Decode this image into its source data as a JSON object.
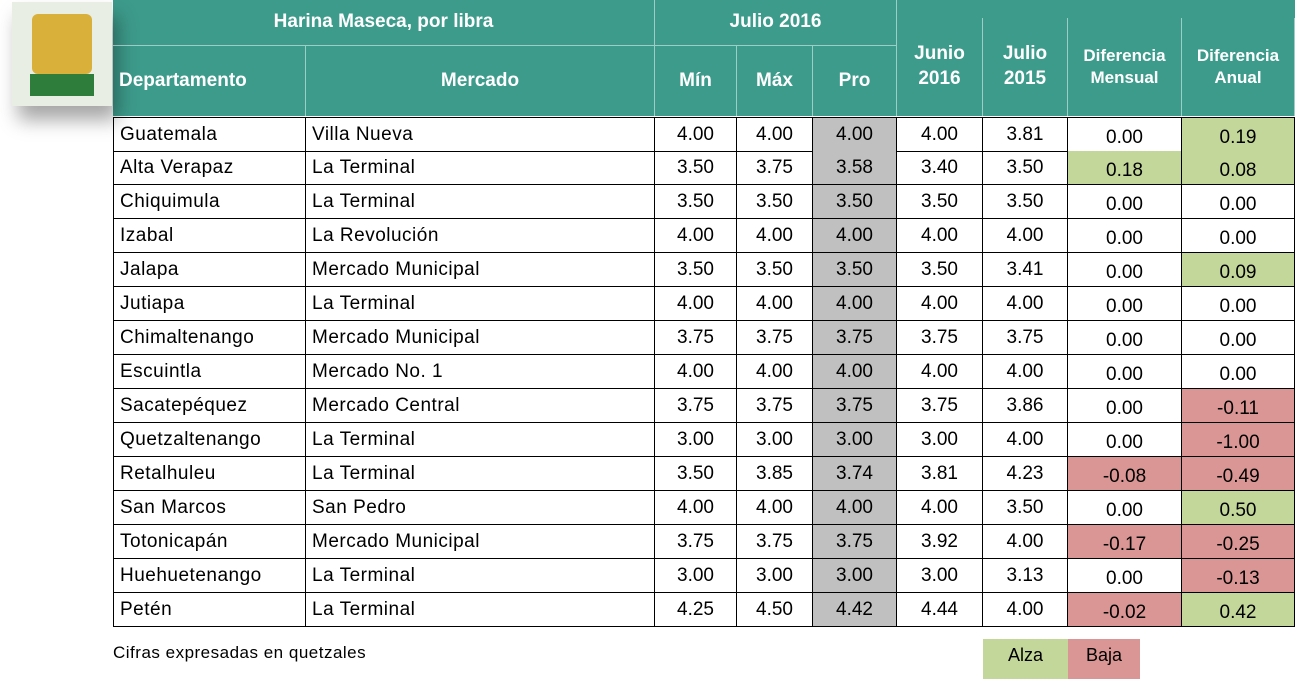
{
  "header": {
    "product": "Harina Maseca, por libra",
    "period": "Julio 2016",
    "columns": [
      "Departamento",
      "Mercado",
      "Mín",
      "Máx",
      "Pro",
      "Junio 2016",
      "Julio 2015",
      "Diferencia Mensual",
      "Diferencia Anual"
    ]
  },
  "table": {
    "rows": [
      [
        "Guatemala",
        "Villa Nueva",
        "4.00",
        "4.00",
        "4.00",
        "4.00",
        "3.81",
        "0.00",
        "0.19"
      ],
      [
        "Alta Verapaz",
        "La Terminal",
        "3.50",
        "3.75",
        "3.58",
        "3.40",
        "3.50",
        "0.18",
        "0.08"
      ],
      [
        "Chiquimula",
        "La Terminal",
        "3.50",
        "3.50",
        "3.50",
        "3.50",
        "3.50",
        "0.00",
        "0.00"
      ],
      [
        "Izabal",
        "La Revolución",
        "4.00",
        "4.00",
        "4.00",
        "4.00",
        "4.00",
        "0.00",
        "0.00"
      ],
      [
        "Jalapa",
        "Mercado Municipal",
        "3.50",
        "3.50",
        "3.50",
        "3.50",
        "3.41",
        "0.00",
        "0.09"
      ],
      [
        "Jutiapa",
        "La Terminal",
        "4.00",
        "4.00",
        "4.00",
        "4.00",
        "4.00",
        "0.00",
        "0.00"
      ],
      [
        "Chimaltenango",
        "Mercado Municipal",
        "3.75",
        "3.75",
        "3.75",
        "3.75",
        "3.75",
        "0.00",
        "0.00"
      ],
      [
        "Escuintla",
        "Mercado No. 1",
        "4.00",
        "4.00",
        "4.00",
        "4.00",
        "4.00",
        "0.00",
        "0.00"
      ],
      [
        "Sacatepéquez",
        "Mercado Central",
        "3.75",
        "3.75",
        "3.75",
        "3.75",
        "3.86",
        "0.00",
        "-0.11"
      ],
      [
        "Quetzaltenango",
        "La Terminal",
        "3.00",
        "3.00",
        "3.00",
        "3.00",
        "4.00",
        "0.00",
        "-1.00"
      ],
      [
        "Retalhuleu",
        "La Terminal",
        "3.50",
        "3.85",
        "3.74",
        "3.81",
        "4.23",
        "-0.08",
        "-0.49"
      ],
      [
        "San Marcos",
        "San Pedro",
        "4.00",
        "4.00",
        "4.00",
        "4.00",
        "3.50",
        "0.00",
        "0.50"
      ],
      [
        "Totonicapán",
        "Mercado Municipal",
        "3.75",
        "3.75",
        "3.75",
        "3.92",
        "4.00",
        "-0.17",
        "-0.25"
      ],
      [
        "Huehuetenango",
        "La Terminal",
        "3.00",
        "3.00",
        "3.00",
        "3.00",
        "3.13",
        "0.00",
        "-0.13"
      ],
      [
        "Petén",
        "La Terminal",
        "4.25",
        "4.50",
        "4.42",
        "4.44",
        "4.00",
        "-0.02",
        "0.42"
      ]
    ]
  },
  "footer": {
    "note": "Cifras expresadas en quetzales",
    "legend": [
      "Alza",
      "Baja"
    ]
  }
}
